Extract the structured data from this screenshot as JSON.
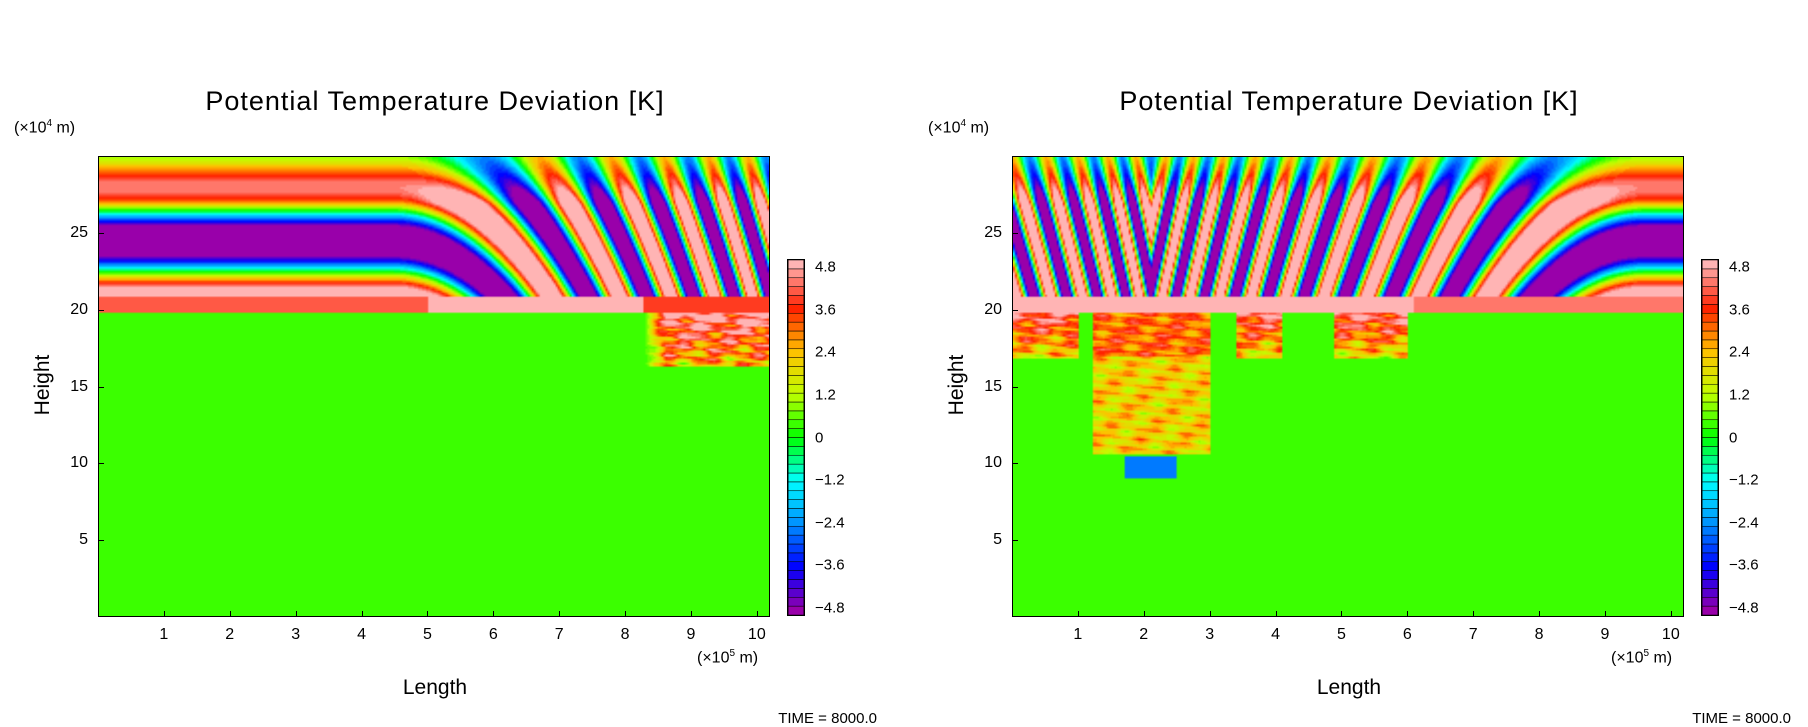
{
  "chart_data": [
    {
      "type": "heatmap",
      "title": "Potential Temperature Deviation [K]",
      "xlabel": "Length",
      "ylabel": "Height",
      "x_unit": {
        "prefix": "(×10",
        "exp": "5",
        "suffix": " m)"
      },
      "y_unit": {
        "prefix": "(×10",
        "exp": "4",
        "suffix": " m)"
      },
      "xlim": [
        0,
        10.2
      ],
      "ylim": [
        0,
        30
      ],
      "xticks": [
        "1",
        "2",
        "3",
        "4",
        "5",
        "6",
        "7",
        "8",
        "9",
        "10"
      ],
      "yticks": [
        "5",
        "10",
        "15",
        "20",
        "25"
      ],
      "colorbar": {
        "zlim": [
          -4.8,
          4.8
        ],
        "ticks": [
          "4.8",
          "3.6",
          "2.4",
          "1.2",
          "0",
          "-1.2",
          "-2.4",
          "-3.6",
          "-4.8"
        ],
        "colors": [
          "#9900aa",
          "#0000ff",
          "#0090ff",
          "#00ffff",
          "#00ff00",
          "#c0ff00",
          "#ffc000",
          "#ff2000",
          "#ffb4b4"
        ]
      },
      "annotation": "TIME = 8000.0"
    },
    {
      "type": "heatmap",
      "title": "Potential Temperature Deviation [K]",
      "xlabel": "Length",
      "ylabel": "Height",
      "x_unit": {
        "prefix": "(×10",
        "exp": "5",
        "suffix": " m)"
      },
      "y_unit": {
        "prefix": "(×10",
        "exp": "4",
        "suffix": " m)"
      },
      "xlim": [
        0,
        10.2
      ],
      "ylim": [
        0,
        30
      ],
      "xticks": [
        "1",
        "2",
        "3",
        "4",
        "5",
        "6",
        "7",
        "8",
        "9",
        "10"
      ],
      "yticks": [
        "5",
        "10",
        "15",
        "20",
        "25"
      ],
      "colorbar": {
        "zlim": [
          -4.8,
          4.8
        ],
        "ticks": [
          "4.8",
          "3.6",
          "2.4",
          "1.2",
          "0",
          "-1.2",
          "-2.4",
          "-3.6",
          "-4.8"
        ],
        "colors": [
          "#9900aa",
          "#0000ff",
          "#0090ff",
          "#00ffff",
          "#00ff00",
          "#c0ff00",
          "#ffc000",
          "#ff2000",
          "#ffb4b4"
        ]
      },
      "annotation": "TIME = 8000.0"
    }
  ]
}
